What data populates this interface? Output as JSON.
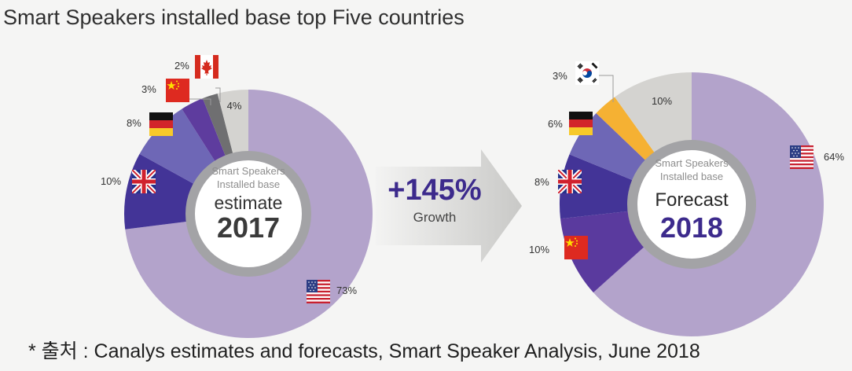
{
  "title": "Smart Speakers installed base top Five countries",
  "footnote": "* 출처 : Canalys estimates and forecasts, Smart Speaker Analysis, June 2018",
  "growth": {
    "value": "+145%",
    "label": "Growth"
  },
  "charts": {
    "left": {
      "center_line1": "Smart Speakers",
      "center_line2": "Installed base",
      "center_label": "estimate",
      "center_year": "2017"
    },
    "right": {
      "center_line1": "Smart Speakers",
      "center_line2": "Installed base",
      "center_label": "Forecast",
      "center_year": "2018"
    }
  },
  "flag_icons": [
    "us-flag-icon",
    "uk-flag-icon",
    "germany-flag-icon",
    "china-flag-icon",
    "canada-flag-icon",
    "korea-flag-icon"
  ],
  "chart_data": [
    {
      "type": "pie",
      "title": "Smart Speakers Installed base estimate 2017",
      "categories": [
        "US",
        "UK",
        "Germany",
        "China",
        "Canada",
        "Others"
      ],
      "values": [
        73,
        10,
        8,
        3,
        2,
        4
      ],
      "labels": [
        "73%",
        "10%",
        "8%",
        "3%",
        "2%",
        "4%"
      ],
      "colors": [
        "#b3a3cb",
        "#433497",
        "#6e67b6",
        "#5e3c9e",
        "#6f6f71",
        "#d4d3d0"
      ]
    },
    {
      "type": "pie",
      "title": "Smart Speakers Installed base Forecast 2018",
      "categories": [
        "US",
        "China",
        "UK",
        "Germany",
        "Korea",
        "Others"
      ],
      "values": [
        64,
        10,
        8,
        6,
        3,
        10
      ],
      "labels": [
        "64%",
        "10%",
        "8%",
        "6%",
        "3%",
        "10%"
      ],
      "colors": [
        "#b3a3cb",
        "#5a3a9e",
        "#433497",
        "#6e67b6",
        "#f5b133",
        "#d4d3d0"
      ]
    }
  ]
}
